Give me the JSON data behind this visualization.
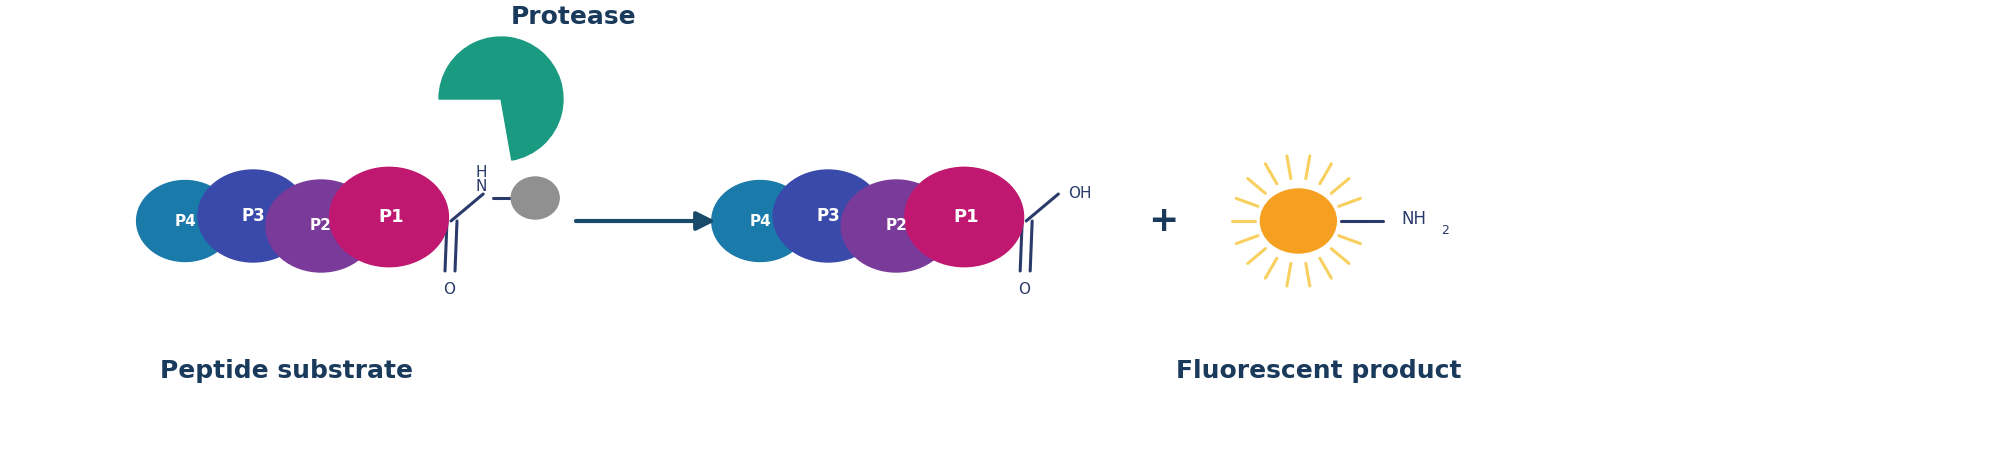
{
  "bg_color": "#ffffff",
  "title_color": "#1a3a5c",
  "p4_color": "#1a7aaa",
  "p3_color": "#3a4aaa",
  "p2_color": "#7a3a9a",
  "p1_color": "#c01870",
  "quencher_color": "#909090",
  "protease_color": "#1a9a80",
  "arrow_color": "#1a4a6a",
  "orange_color": "#f5a020",
  "orange_glow": "#f8d060",
  "bond_color": "#2a3a6a",
  "label_peptide": "Peptide substrate",
  "label_fluorescent": "Fluorescent product",
  "label_protease": "Protease",
  "fig_width": 20.0,
  "fig_height": 4.76,
  "xlim": [
    0,
    20
  ],
  "ylim": [
    0,
    4.76
  ]
}
